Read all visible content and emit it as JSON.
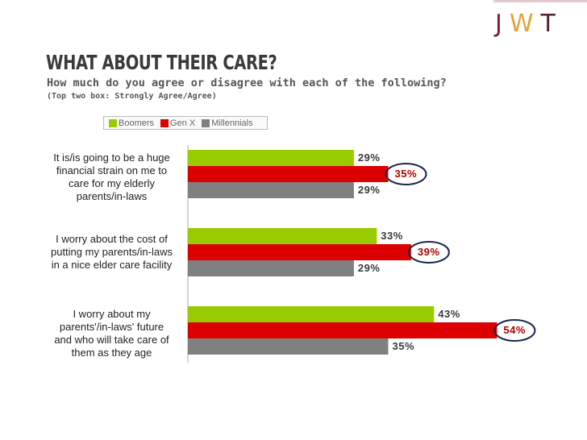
{
  "logo": {
    "letters": [
      "J",
      "W",
      "T"
    ],
    "colors": [
      "#7a1f3a",
      "#e2a43a",
      "#5a2030"
    ]
  },
  "header": {
    "title": "WHAT ABOUT THEIR CARE?",
    "subtitle": "How much do you agree or disagree with each of the following?",
    "note": "(Top two box: Strongly Agree/Agree)"
  },
  "legend": [
    {
      "label": "Boomers",
      "color": "#99cc00"
    },
    {
      "label": "Gen X",
      "color": "#dd0000"
    },
    {
      "label": "Millennials",
      "color": "#808080"
    }
  ],
  "chart_data": {
    "type": "bar",
    "orientation": "horizontal",
    "categories": [
      "It is/is going to be a huge financial strain on me to care for my elderly parents/in-laws",
      "I worry about the cost of putting my parents/in-laws in a nice elder care facility",
      "I worry about my parents'/in-laws' future and who will take care of them as they age"
    ],
    "category_lines": [
      [
        "It is/is going to be a huge",
        "financial strain on me to",
        "care for my elderly",
        "parents/in-laws"
      ],
      [
        "I worry about the cost of",
        "putting my parents/in-laws",
        "in a nice elder care facility"
      ],
      [
        "I worry about my",
        "parents'/in-laws' future",
        "and who will take care of",
        "them as they age"
      ]
    ],
    "series": [
      {
        "name": "Boomers",
        "values": [
          29,
          33,
          43
        ],
        "labels": [
          "29%",
          "33%",
          "43%"
        ],
        "color": "#99cc00"
      },
      {
        "name": "Gen X",
        "values": [
          35,
          39,
          54
        ],
        "labels": [
          "35%",
          "39%",
          "54%"
        ],
        "color": "#dd0000"
      },
      {
        "name": "Millennials",
        "values": [
          29,
          29,
          35
        ],
        "labels": [
          "29%",
          "29%",
          "35%"
        ],
        "color": "#808080"
      }
    ],
    "highlighted_series": "Gen X",
    "xlim": [
      0,
      60
    ],
    "grid": false
  }
}
